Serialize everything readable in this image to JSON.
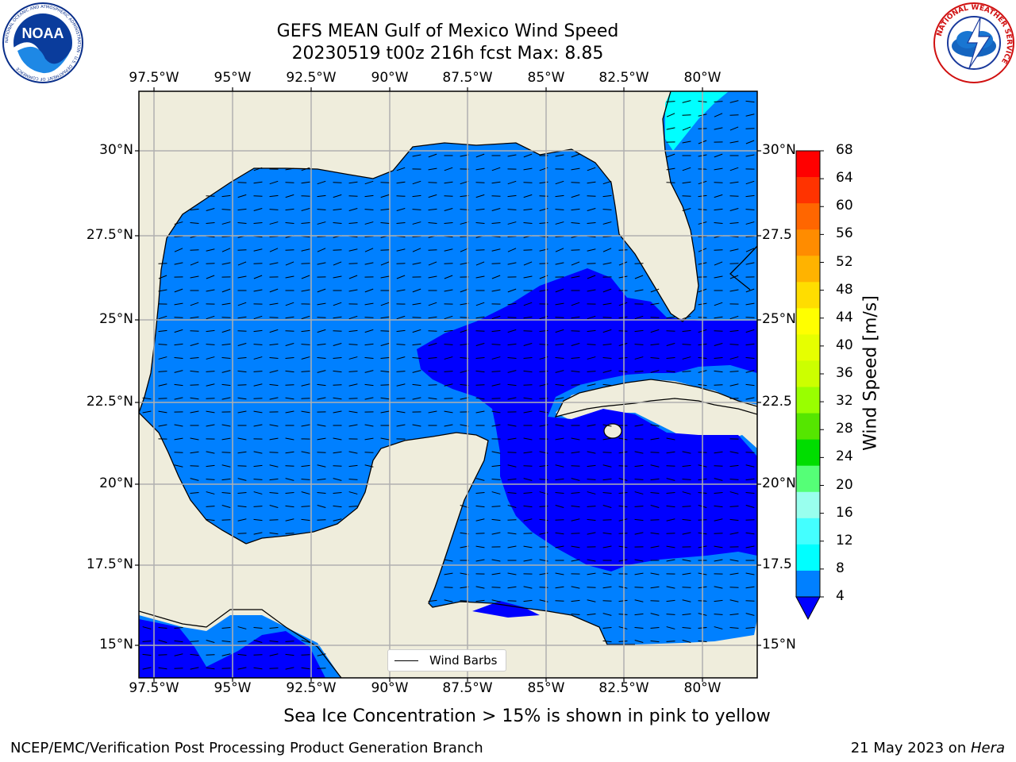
{
  "header": {
    "title_line1": "GEFS MEAN Gulf of Mexico Wind Speed",
    "title_line2": "20230519 t00z 216h fcst   Max: 8.85"
  },
  "logos": {
    "left": "noaa-logo",
    "left_text": "NOAA",
    "left_ring": "NATIONAL OCEANIC AND ATMOSPHERIC ADMINISTRATION · U.S. DEPARTMENT OF COMMERCE",
    "right": "nws-logo",
    "right_ring": "NATIONAL WEATHER SERVICE"
  },
  "map": {
    "lon_labels": [
      "97.5°W",
      "95°W",
      "92.5°W",
      "90°W",
      "87.5°W",
      "85°W",
      "82.5°W",
      "80°W"
    ],
    "lat_labels_left": [
      "30°N",
      "27.5°N",
      "25°N",
      "22.5°N",
      "20°N",
      "17.5°N",
      "15°N"
    ],
    "lat_labels_right": [
      "30°N",
      "27.5",
      "25°N",
      "22.5",
      "20°N",
      "17.5",
      "15°N"
    ],
    "legend_label": "Wind Barbs",
    "colors": {
      "land": "#efeddc",
      "wind_4_8": "#0080ff",
      "wind_below_4": "#0000ff",
      "wind_8_12": "#00ffff",
      "grid": "#b0b0b0",
      "coast": "#000000"
    }
  },
  "colorbar": {
    "title": "Wind Speed [m/s]",
    "levels": [
      "68",
      "64",
      "60",
      "56",
      "52",
      "48",
      "44",
      "40",
      "36",
      "32",
      "28",
      "24",
      "20",
      "16",
      "12",
      "8",
      "4"
    ],
    "colors": [
      "#ff0000",
      "#ff3300",
      "#ff6600",
      "#ff8c00",
      "#ffb300",
      "#ffdd00",
      "#ffff00",
      "#e6ff00",
      "#ccff00",
      "#99ff00",
      "#55e600",
      "#00dd00",
      "#55ff77",
      "#99ffee",
      "#44ffff",
      "#00ffff",
      "#0080ff"
    ],
    "extend_color": "#0000ff"
  },
  "subtitle": "Sea Ice Concentration > 15% is shown in pink to yellow",
  "footer": {
    "left": "NCEP/EMC/Verification Post Processing Product Generation Branch",
    "right_prefix": "21 May 2023 on ",
    "right_machine": "Hera"
  }
}
